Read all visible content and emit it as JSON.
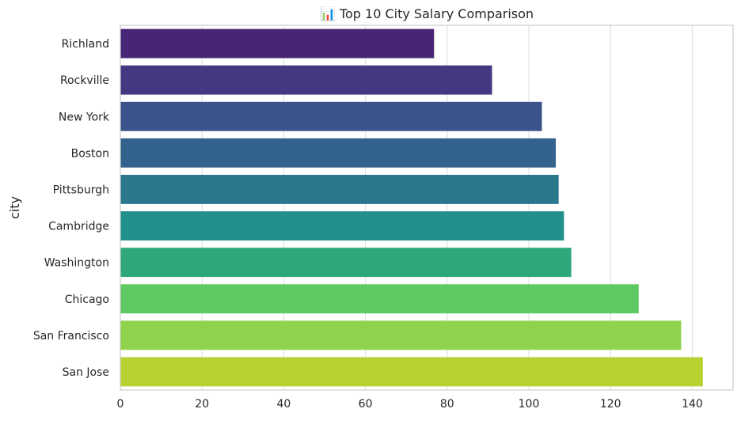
{
  "chart_data": {
    "type": "bar",
    "orientation": "horizontal",
    "title": "📊 Top 10 City Salary Comparison",
    "xlabel": "",
    "ylabel": "city",
    "xlim": [
      0,
      150
    ],
    "xticks": [
      0,
      20,
      40,
      60,
      80,
      100,
      120,
      140
    ],
    "grid": true,
    "categories": [
      "Richland",
      "Rockville",
      "New York",
      "Boston",
      "Pittsburgh",
      "Cambridge",
      "Washington",
      "Chicago",
      "San Francisco",
      "San Jose"
    ],
    "values": [
      76.8,
      91.0,
      103.2,
      106.6,
      107.3,
      108.6,
      110.4,
      126.9,
      137.3,
      142.6
    ],
    "colors": [
      "#482677",
      "#453781",
      "#3b528b",
      "#33638d",
      "#2a788e",
      "#21908d",
      "#2ea87a",
      "#5ec962",
      "#8fd24c",
      "#b5d230"
    ],
    "colormap": "viridis"
  }
}
